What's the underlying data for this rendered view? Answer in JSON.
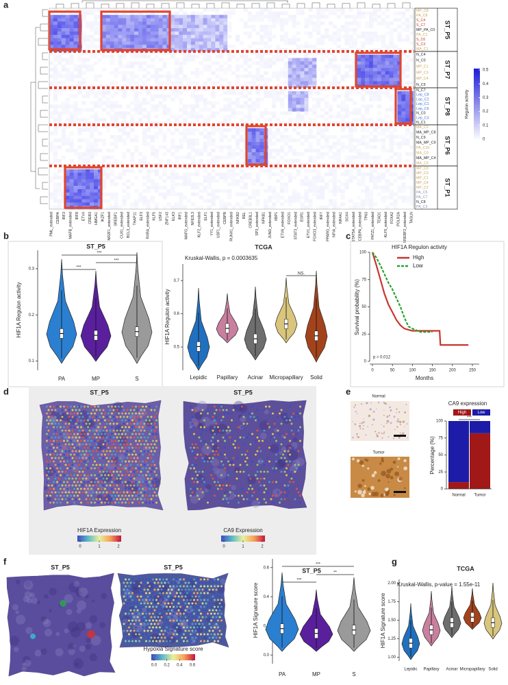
{
  "panels": {
    "a": {
      "label": "a",
      "clusters": [
        {
          "name": "ST_P5",
          "rows": [
            "MP_C8",
            "PA_C8",
            "S_C4",
            "S_C7",
            "MP_PA_C0",
            "PA_C1",
            "S_C6",
            "S_C3",
            "MA_C1"
          ],
          "row_colors": [
            "#c9a45c",
            "#c9a45c",
            "#c0392b",
            "#c0392b",
            "#222222",
            "#c9a45c",
            "#c0392b",
            "#c0392b",
            "#c9a45c"
          ]
        },
        {
          "name": "ST_P7",
          "rows": [
            "N_C4",
            "N_C0",
            "MP_C1",
            "MP_C3",
            "MP_C4",
            "N_C9"
          ],
          "row_colors": [
            "#222222",
            "#222222",
            "#c9a45c",
            "#c9a45c",
            "#c9a45c",
            "#222222"
          ]
        },
        {
          "name": "ST_P8",
          "rows": [
            "N_C7",
            "Lep_C8",
            "Lep_C2",
            "Lep_C1",
            "Lep_C6",
            "N_C0",
            "Lep_C3",
            "N_C1"
          ],
          "row_colors": [
            "#222222",
            "#3b6fd8",
            "#3b6fd8",
            "#3b6fd8",
            "#3b6fd8",
            "#222222",
            "#3b6fd8",
            "#222222"
          ]
        },
        {
          "name": "ST_P6",
          "rows": [
            "MA_C2",
            "MA_MP_C8",
            "N_C9",
            "MA_MP_C9",
            "PA_C10",
            "MA_C0",
            "MA_MP_C4",
            "MA_C5"
          ],
          "row_colors": [
            "#c9a45c",
            "#222222",
            "#222222",
            "#222222",
            "#c9a45c",
            "#c9a45c",
            "#222222",
            "#c9a45c"
          ]
        },
        {
          "name": "ST_P1",
          "rows": [
            "MP_C0",
            "MP_C3",
            "MP_C1",
            "MP_C4",
            "MP_C2",
            "PA_C5",
            "PA_C7",
            "N_C8",
            "PA_C3"
          ],
          "row_colors": [
            "#c9a45c",
            "#c9a45c",
            "#c9a45c",
            "#c9a45c",
            "#c9a45c",
            "#8a8fb5",
            "#8a8fb5",
            "#222222",
            "#8a8fb5"
          ]
        }
      ],
      "columns": [
        "PML_extended",
        "CEBPA",
        "IRF3",
        "MAFB_extended",
        "IRF8",
        "ETV4",
        "CREB3",
        "HMGA1",
        "IKZF1",
        "NR2F1_extended",
        "SREBF1",
        "CUX1_extended",
        "BCL3_extended",
        "THAP11",
        "ELF3",
        "RXRA_extended",
        "KLF5",
        "USF2",
        "ZNF143",
        "ELK3",
        "IRF1",
        "MAFG_extended",
        "NFE2L3",
        "KLF2_extended",
        "ELF1",
        "YY1_extended",
        "USF1_extended",
        "CEBPB",
        "RUNX1_extended",
        "NFKB2",
        "REL",
        "CREB3L1",
        "SP3_extended",
        "NFKB1",
        "JUND_extended",
        "XBP1",
        "ETV6_extended",
        "FOXO1",
        "STAT3_extended",
        "EGR1",
        "ETV1_extended",
        "FOXO3_extended",
        "IRF7",
        "PPARG_extended",
        "NFIA_extended",
        "NR4A1",
        "SOX4",
        "STAT5A_extended",
        "CEBPA_extended",
        "TP63",
        "PATZ1_extended",
        "TEAD1",
        "KLF5_extended",
        "FOXA2",
        "POLR2A",
        "SREBF2_extended",
        "TAGLN"
      ],
      "legend": {
        "title": "Regulon activity",
        "range": [
          0,
          0.5
        ],
        "ticks": [
          0,
          0.1,
          0.2,
          0.3,
          0.4,
          0.5
        ]
      }
    },
    "b": {
      "label": "b",
      "left": {
        "title": "ST_P5",
        "ylabel": "HIF1A Regulon activity",
        "categories": [
          "PA",
          "MP",
          "S"
        ],
        "colors": [
          "#2b7fd0",
          "#5a1f9c",
          "#9a9a9a"
        ],
        "ylim": [
          0.08,
          0.34
        ],
        "yticks": [
          0.1,
          0.2,
          0.3
        ],
        "significance": [
          "***",
          "***",
          "***"
        ]
      },
      "right": {
        "title": "TCGA",
        "note": "Kruskal-Wallis, p = 0.0003635",
        "ylabel": "HIF1A Regulon activity",
        "categories": [
          "Lepidic",
          "Papillary",
          "Acinar",
          "Micropapillary",
          "Solid"
        ],
        "colors": [
          "#2170c0",
          "#c97f9e",
          "#6e6e6e",
          "#d9c57c",
          "#a3431c"
        ],
        "ylim": [
          0.43,
          0.75
        ],
        "yticks": [
          0.5,
          0.6,
          0.7
        ],
        "significance": [
          "NS."
        ]
      }
    },
    "c": {
      "label": "c",
      "legend_title": "HIF1A Regulon activity",
      "ylabel": "Survival probability (%)",
      "xlabel": "Months",
      "note": "p = 0.012",
      "x": [
        0,
        10,
        20,
        30,
        40,
        50,
        60,
        70,
        80,
        90,
        100,
        120,
        150,
        168,
        170,
        240
      ],
      "series": [
        {
          "name": "High",
          "color": "#c8352e",
          "values": [
            100,
            88,
            75,
            62,
            52,
            45,
            38,
            33,
            30,
            29,
            28,
            28,
            28,
            28,
            15,
            15
          ]
        },
        {
          "name": "Low",
          "color": "#27a12c",
          "values": [
            100,
            95,
            88,
            80,
            72,
            66,
            58,
            50,
            40,
            32,
            30,
            27,
            27,
            null,
            null,
            null
          ]
        }
      ],
      "xlim": [
        0,
        250
      ],
      "xticks": [
        0,
        50,
        100,
        150,
        200,
        250
      ],
      "ylim": [
        0,
        100
      ],
      "yticks": [
        0,
        25,
        50,
        75,
        100
      ]
    },
    "d": {
      "label": "d",
      "titles": [
        "ST_P5",
        "ST_P5"
      ],
      "legends": [
        {
          "title": "HIF1A Expression",
          "ticks": [
            0,
            1,
            2
          ]
        },
        {
          "title": "CA9 Expression",
          "ticks": [
            0,
            1,
            2
          ]
        }
      ]
    },
    "e": {
      "label": "e",
      "images": [
        "Normal",
        "Tumor"
      ],
      "title": "CA9 expression",
      "categories": [
        "Normal",
        "Tumor"
      ],
      "ylabel": "Percentage (%)",
      "series": [
        {
          "name": "High",
          "color": "#a01818",
          "values": [
            10,
            82
          ]
        },
        {
          "name": "Low",
          "color": "#1c1ca8",
          "values": [
            90,
            18
          ]
        }
      ],
      "ylim": [
        0,
        100
      ],
      "yticks": [
        0,
        25,
        50,
        75,
        100
      ],
      "significance": "***"
    },
    "f": {
      "label": "f",
      "titles": [
        "ST_P5",
        "ST_P5"
      ],
      "legend": {
        "title": "Hypoxia Signature score",
        "ticks": [
          {
            "value": 0,
            "label": "0.0"
          },
          0.2,
          0.4,
          0.6
        ]
      },
      "violin": {
        "title": "ST_P5",
        "ylabel": "HIF1A Signature score",
        "categories": [
          "PA",
          "MP",
          "S"
        ],
        "colors": [
          "#2b7fd0",
          "#5a1f9c",
          "#9a9a9a"
        ],
        "ylim": [
          -0.06,
          0.66
        ],
        "yticks": [
          {
            "value": 0,
            "label": "0.0"
          },
          0.2,
          0.4,
          0.6
        ],
        "significance": [
          "***",
          "**",
          "***"
        ]
      }
    },
    "g": {
      "label": "g",
      "title": "TCGA",
      "note": "Kruskal-Wallis, p-value = 1.55e-11",
      "ylabel": "HIF1A Signature score",
      "categories": [
        "Lepidic",
        "Papillary",
        "Acinar",
        "Micropapillary",
        "Solid"
      ],
      "colors": [
        "#2170c0",
        "#c97f9e",
        "#6e6e6e",
        "#a3431c",
        "#d9c57c"
      ],
      "ylim": [
        0.95,
        2.05
      ],
      "yticks": [
        {
          "value": 1,
          "label": "1.00"
        },
        {
          "value": 1.25,
          "label": "1.25"
        },
        {
          "value": 1.5,
          "label": "1.50"
        },
        {
          "value": 1.75,
          "label": "1.75"
        },
        {
          "value": 2,
          "label": "2.00"
        }
      ]
    }
  }
}
